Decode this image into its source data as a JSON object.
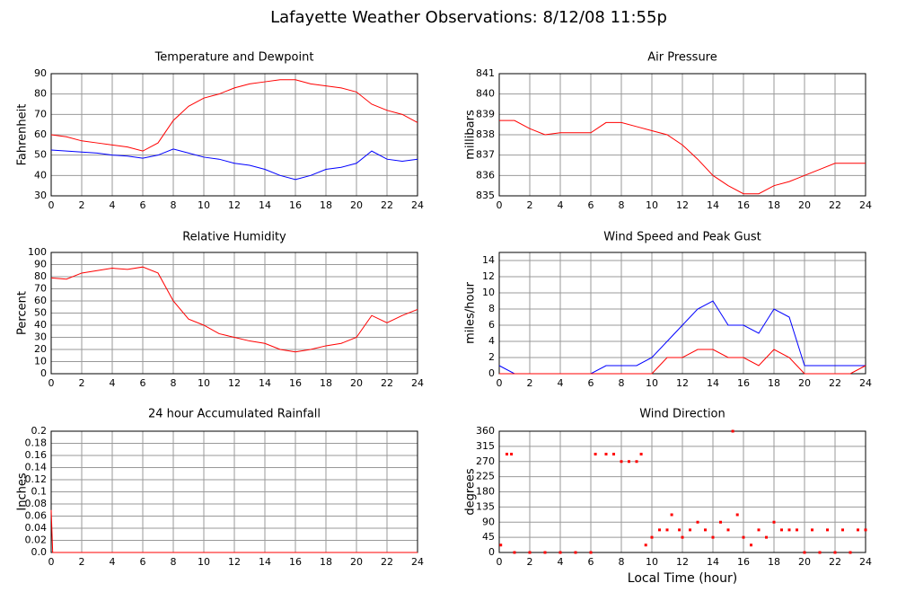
{
  "title": "Lafayette Weather Observations: 8/12/08 11:55p",
  "xlabel": "Local Time (hour)",
  "chart_data": [
    {
      "type": "line",
      "title": "Temperature and Dewpoint",
      "ylabel": "Fahrenheit",
      "x": [
        0,
        1,
        2,
        3,
        4,
        5,
        6,
        7,
        8,
        9,
        10,
        11,
        12,
        13,
        14,
        15,
        16,
        17,
        18,
        19,
        20,
        21,
        22,
        23,
        24
      ],
      "series": [
        {
          "color": "#ff0000",
          "values": [
            60,
            59,
            57,
            56,
            55,
            54,
            52,
            56,
            67,
            74,
            78,
            80,
            83,
            85,
            86,
            87,
            87,
            85,
            84,
            83,
            81,
            75,
            72,
            70,
            66
          ]
        },
        {
          "color": "#0000ff",
          "values": [
            52.5,
            52,
            51.5,
            51,
            50,
            49.5,
            48.5,
            50,
            53,
            51,
            49,
            48,
            46,
            45,
            43,
            40,
            38,
            40,
            43,
            44,
            46,
            52,
            48,
            47,
            48
          ]
        }
      ],
      "xlim": [
        0,
        24
      ],
      "xticks": [
        0,
        2,
        4,
        6,
        8,
        10,
        12,
        14,
        16,
        18,
        20,
        22,
        24
      ],
      "ylim": [
        30,
        90
      ],
      "yticks": [
        30,
        40,
        50,
        60,
        70,
        80,
        90
      ],
      "grid": true
    },
    {
      "type": "line",
      "title": "Air Pressure",
      "ylabel": "millibars",
      "x": [
        0,
        1,
        2,
        3,
        4,
        5,
        6,
        7,
        8,
        9,
        10,
        11,
        12,
        13,
        14,
        15,
        16,
        17,
        18,
        19,
        20,
        21,
        22,
        23,
        24
      ],
      "series": [
        {
          "color": "#ff0000",
          "values": [
            838.7,
            838.7,
            838.3,
            838.0,
            838.1,
            838.1,
            838.1,
            838.6,
            838.6,
            838.4,
            838.2,
            838.0,
            837.5,
            836.8,
            836.0,
            835.5,
            835.1,
            835.1,
            835.5,
            835.7,
            836.0,
            836.3,
            836.6,
            836.6,
            836.6
          ]
        }
      ],
      "xlim": [
        0,
        24
      ],
      "xticks": [
        0,
        2,
        4,
        6,
        8,
        10,
        12,
        14,
        16,
        18,
        20,
        22,
        24
      ],
      "ylim": [
        835,
        841
      ],
      "yticks": [
        835,
        836,
        837,
        838,
        839,
        840,
        841
      ],
      "grid": true
    },
    {
      "type": "line",
      "title": "Relative Humidity",
      "ylabel": "Percent",
      "x": [
        0,
        1,
        2,
        3,
        4,
        5,
        6,
        7,
        8,
        9,
        10,
        11,
        12,
        13,
        14,
        15,
        16,
        17,
        18,
        19,
        20,
        21,
        22,
        23,
        24
      ],
      "series": [
        {
          "color": "#ff0000",
          "values": [
            79,
            78,
            83,
            85,
            87,
            86,
            88,
            83,
            60,
            45,
            40,
            33,
            30,
            27,
            25,
            20,
            18,
            20,
            23,
            25,
            30,
            48,
            42,
            48,
            53
          ]
        }
      ],
      "xlim": [
        0,
        24
      ],
      "xticks": [
        0,
        2,
        4,
        6,
        8,
        10,
        12,
        14,
        16,
        18,
        20,
        22,
        24
      ],
      "ylim": [
        0,
        100
      ],
      "yticks": [
        0,
        10,
        20,
        30,
        40,
        50,
        60,
        70,
        80,
        90,
        100
      ],
      "grid": true
    },
    {
      "type": "line",
      "title": "Wind Speed and Peak Gust",
      "ylabel": "miles/hour",
      "x": [
        0,
        1,
        2,
        3,
        4,
        5,
        6,
        7,
        8,
        9,
        10,
        11,
        12,
        13,
        14,
        15,
        16,
        17,
        18,
        19,
        20,
        21,
        22,
        23,
        24
      ],
      "series": [
        {
          "color": "#0000ff",
          "values": [
            1,
            0,
            0,
            0,
            0,
            0,
            0,
            1,
            1,
            1,
            2,
            4,
            6,
            8,
            9,
            6,
            6,
            5,
            8,
            7,
            1,
            1,
            1,
            1,
            1
          ]
        },
        {
          "color": "#ff0000",
          "values": [
            0,
            0,
            0,
            0,
            0,
            0,
            0,
            0,
            0,
            0,
            0,
            2,
            2,
            3,
            3,
            2,
            2,
            1,
            3,
            2,
            0,
            0,
            0,
            0,
            1
          ]
        }
      ],
      "xlim": [
        0,
        24
      ],
      "xticks": [
        0,
        2,
        4,
        6,
        8,
        10,
        12,
        14,
        16,
        18,
        20,
        22,
        24
      ],
      "ylim": [
        0,
        15
      ],
      "yticks": [
        0,
        2,
        4,
        6,
        8,
        10,
        12,
        14
      ],
      "grid": true
    },
    {
      "type": "line",
      "title": "24 hour Accumulated Rainfall",
      "ylabel": "Inches",
      "x": [
        0,
        0.1,
        24
      ],
      "series": [
        {
          "color": "#ff0000",
          "values": [
            0.07,
            0,
            0
          ]
        }
      ],
      "xlim": [
        0,
        24
      ],
      "xticks": [
        0,
        2,
        4,
        6,
        8,
        10,
        12,
        14,
        16,
        18,
        20,
        22,
        24
      ],
      "ylim": [
        0,
        0.2
      ],
      "yticks": [
        {
          "value": 0,
          "label": "0.0"
        },
        0.02,
        0.04,
        0.06,
        0.08,
        0.1,
        0.12,
        0.14,
        0.16,
        0.18,
        {
          "value": 0.2,
          "label": "0.2"
        }
      ],
      "grid": true
    },
    {
      "type": "scatter",
      "title": "Wind Direction",
      "ylabel": "degrees",
      "x": [
        0.1,
        0.5,
        0.8,
        1,
        2,
        3,
        4,
        5,
        6,
        6.3,
        7,
        7.5,
        8,
        8.5,
        9,
        9.3,
        9.6,
        10,
        10.5,
        11,
        11.3,
        11.8,
        12,
        12.5,
        13,
        13.5,
        14,
        14.5,
        15,
        15.3,
        15.6,
        16,
        16.5,
        17,
        17.5,
        18,
        18.5,
        19,
        19.5,
        20,
        20.5,
        21,
        21.5,
        22,
        22.5,
        23,
        23.5,
        24
      ],
      "series": [
        {
          "color": "#ff0000",
          "values": [
            22,
            292,
            292,
            0,
            0,
            0,
            0,
            0,
            0,
            292,
            292,
            292,
            270,
            270,
            270,
            292,
            22,
            45,
            67,
            67,
            112,
            67,
            45,
            67,
            90,
            67,
            45,
            90,
            67,
            360,
            112,
            45,
            22,
            67,
            45,
            90,
            67,
            67,
            67,
            0,
            67,
            0,
            67,
            0,
            67,
            0,
            67,
            67
          ]
        }
      ],
      "xlim": [
        0,
        24
      ],
      "xticks": [
        0,
        2,
        4,
        6,
        8,
        10,
        12,
        14,
        16,
        18,
        20,
        22,
        24
      ],
      "ylim": [
        0,
        360
      ],
      "yticks": [
        0,
        45,
        90,
        135,
        180,
        225,
        270,
        315,
        360
      ],
      "grid": true
    }
  ]
}
